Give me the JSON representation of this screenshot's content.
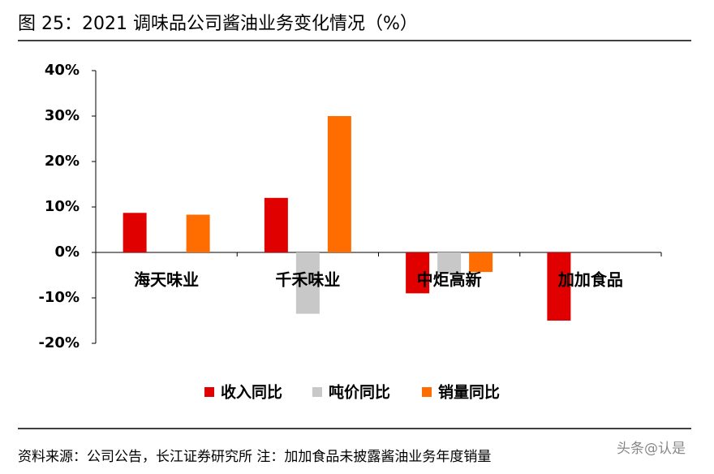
{
  "chart_data": {
    "type": "bar",
    "title": "图 25：2021 调味品公司酱油业务变化情况（%）",
    "categories": [
      "海天味业",
      "千禾味业",
      "中炬高新",
      "加加食品"
    ],
    "series": [
      {
        "name": "收入同比",
        "color": "#e00000",
        "values": [
          8.7,
          12,
          -9,
          -15
        ]
      },
      {
        "name": "吨价同比",
        "color": "#c8c8c8",
        "values": [
          null,
          -13.5,
          -4.5,
          null
        ]
      },
      {
        "name": "销量同比",
        "color": "#ff6d00",
        "values": [
          8.3,
          30,
          -4.3,
          null
        ]
      }
    ],
    "ylim": [
      -20,
      40
    ],
    "yticks": [
      {
        "value": -20,
        "label": "-20%"
      },
      {
        "value": -10,
        "label": "-10%"
      },
      {
        "value": 0,
        "label": "0%"
      },
      {
        "value": 10,
        "label": "10%"
      },
      {
        "value": 20,
        "label": "20%"
      },
      {
        "value": 30,
        "label": "30%"
      },
      {
        "value": 40,
        "label": "40%"
      }
    ],
    "legend": "bottom",
    "source": "资料来源：公司公告，长江证券研究所  注：加加食品未披露酱油业务年度销量",
    "watermark": "头条@认是"
  }
}
